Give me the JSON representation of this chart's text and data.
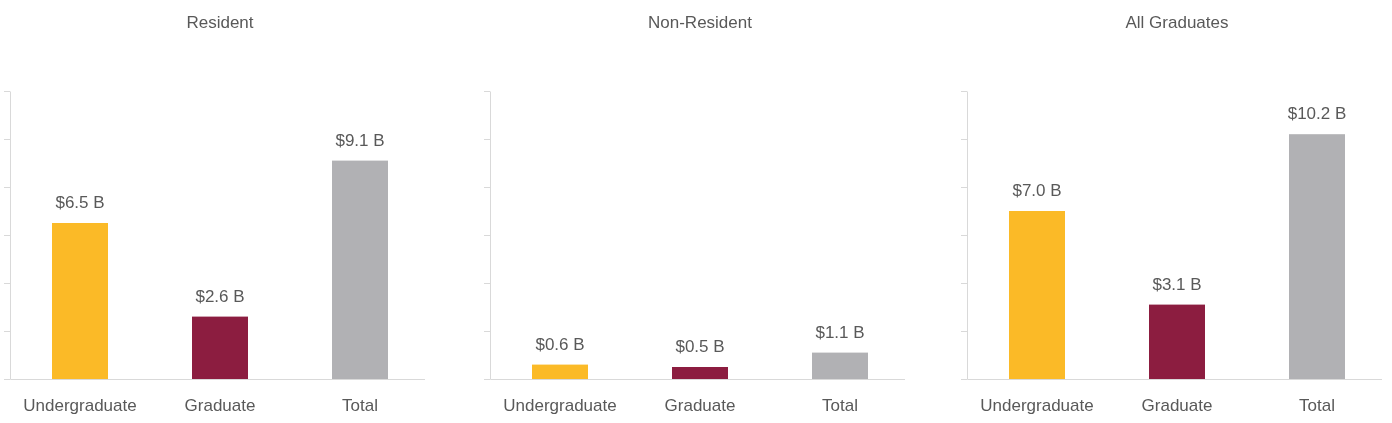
{
  "chart_data": [
    {
      "type": "bar",
      "title": "Resident",
      "categories": [
        "Undergraduate",
        "Graduate",
        "Total"
      ],
      "values": [
        6.5,
        2.6,
        9.1
      ],
      "colors": [
        "#fbba27",
        "#8c1d40",
        "#b1b1b4"
      ],
      "value_labels": [
        "$6.5 B",
        "$2.6 B",
        "$9.1 B"
      ],
      "ylim": [
        0,
        12
      ],
      "yticks": [
        {
          "value": 0,
          "label": null
        },
        {
          "value": 2,
          "label": null
        },
        {
          "value": 4,
          "label": null
        },
        {
          "value": 6,
          "label": null
        },
        {
          "value": 8,
          "label": null
        },
        {
          "value": 10,
          "label": null
        },
        {
          "value": 12,
          "label": null
        }
      ],
      "tick_labels": "x"
    },
    {
      "type": "bar",
      "title": "Non-Resident",
      "categories": [
        "Undergraduate",
        "Graduate",
        "Total"
      ],
      "values": [
        0.6,
        0.5,
        1.1
      ],
      "colors": [
        "#fbba27",
        "#8c1d40",
        "#b1b1b4"
      ],
      "value_labels": [
        "$0.6 B",
        "$0.5 B",
        "$1.1 B"
      ],
      "ylim": [
        0,
        12
      ],
      "yticks": [
        {
          "value": 0,
          "label": null
        },
        {
          "value": 2,
          "label": null
        },
        {
          "value": 4,
          "label": null
        },
        {
          "value": 6,
          "label": null
        },
        {
          "value": 8,
          "label": null
        },
        {
          "value": 10,
          "label": null
        },
        {
          "value": 12,
          "label": null
        }
      ],
      "tick_labels": "x"
    },
    {
      "type": "bar",
      "title": "All Graduates",
      "categories": [
        "Undergraduate",
        "Graduate",
        "Total"
      ],
      "values": [
        7.0,
        3.1,
        10.2
      ],
      "colors": [
        "#fbba27",
        "#8c1d40",
        "#b1b1b4"
      ],
      "value_labels": [
        "$7.0 B",
        "$3.1 B",
        "$10.2 B"
      ],
      "ylim": [
        0,
        12
      ],
      "yticks": [
        {
          "value": 0,
          "label": null
        },
        {
          "value": 2,
          "label": null
        },
        {
          "value": 4,
          "label": null
        },
        {
          "value": 6,
          "label": null
        },
        {
          "value": 8,
          "label": null
        },
        {
          "value": 10,
          "label": null
        },
        {
          "value": 12,
          "label": null
        }
      ],
      "tick_labels": "x"
    }
  ]
}
